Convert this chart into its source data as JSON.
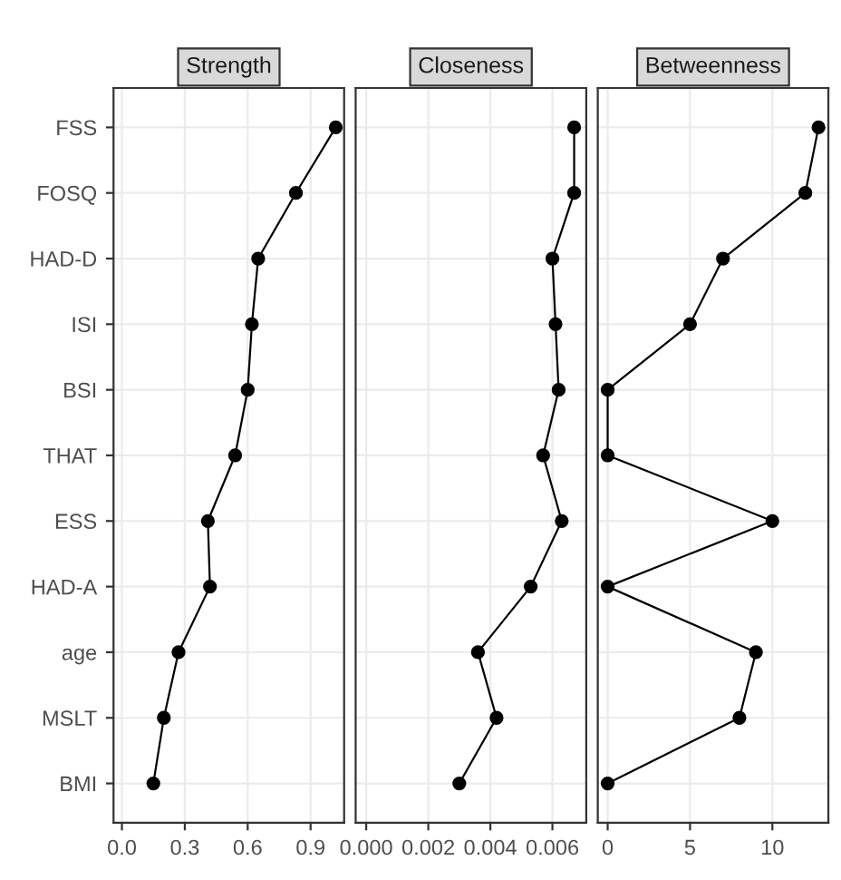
{
  "chart_data": [
    {
      "type": "line",
      "orientation": "horizontal",
      "title": "Strength",
      "categories": [
        "FSS",
        "FOSQ",
        "HAD-D",
        "ISI",
        "BSI",
        "THAT",
        "ESS",
        "HAD-A",
        "age",
        "MSLT",
        "BMI"
      ],
      "series": [
        {
          "color": "#000000",
          "values": [
            1.02,
            0.83,
            0.65,
            0.62,
            0.6,
            0.54,
            0.41,
            0.42,
            0.27,
            0.2,
            0.15
          ]
        }
      ],
      "xlim": [
        -0.04,
        1.06
      ],
      "xticks": [
        {
          "value": 0,
          "label": "0.0"
        },
        0.3,
        0.6,
        0.9
      ],
      "marker": "circle",
      "grid": true
    },
    {
      "type": "line",
      "orientation": "horizontal",
      "title": "Closeness",
      "series": [
        {
          "color": "#000000",
          "values": [
            0.0067,
            0.0067,
            0.006,
            0.0061,
            0.0062,
            0.0057,
            0.0063,
            0.0053,
            0.0036,
            0.0042,
            0.003
          ]
        }
      ],
      "xlim": [
        -0.00034,
        0.00709
      ],
      "xticks": [
        {
          "value": 0,
          "label": "0.000"
        },
        0.002,
        0.004,
        0.006
      ],
      "marker": "circle",
      "grid": true,
      "tick_labels": "x"
    },
    {
      "type": "line",
      "orientation": "horizontal",
      "title": "Betweenness",
      "series": [
        {
          "color": "#000000",
          "values": [
            12.8,
            12,
            7,
            5,
            0,
            0,
            10,
            0,
            9,
            8,
            0
          ]
        }
      ],
      "xlim": [
        -0.6,
        13.4
      ],
      "xticks": [
        0,
        5,
        10
      ],
      "marker": "circle",
      "grid": true,
      "tick_labels": "x"
    }
  ]
}
